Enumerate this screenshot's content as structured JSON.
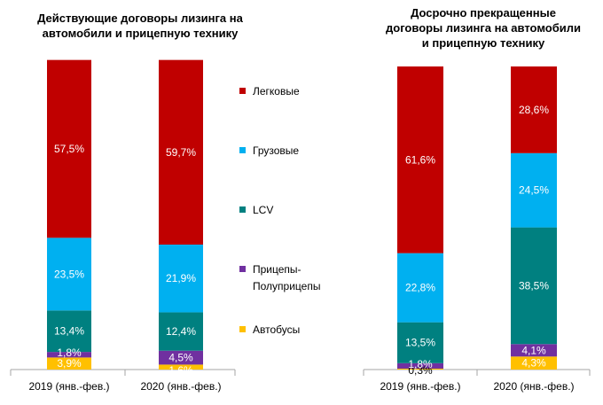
{
  "chart_data": [
    {
      "type": "bar",
      "stacked": true,
      "title": "Действующие договоры лизинга на автомобили и прицепную технику",
      "categories": [
        "2019 (янв.-фев.)",
        "2020 (янв.-фев.)"
      ],
      "series": [
        {
          "name": "Автобусы",
          "values": [
            3.9,
            1.6
          ],
          "labels": [
            "3,9%",
            "1,6%"
          ]
        },
        {
          "name": "Прицепы-Полуприцепы",
          "values": [
            1.8,
            4.5
          ],
          "labels": [
            "1,8%",
            "4,5%"
          ]
        },
        {
          "name": "LCV",
          "values": [
            13.4,
            12.4
          ],
          "labels": [
            "13,4%",
            "12,4%"
          ]
        },
        {
          "name": "Грузовые",
          "values": [
            23.5,
            21.9
          ],
          "labels": [
            "23,5%",
            "21,9%"
          ]
        },
        {
          "name": "Легковые",
          "values": [
            57.5,
            59.7
          ],
          "labels": [
            "57,5%",
            "59,7%"
          ]
        }
      ],
      "ylim": [
        0,
        100
      ]
    },
    {
      "type": "bar",
      "stacked": true,
      "title": "Досрочно прекращенные договоры лизинга на автомобили и прицепную технику",
      "categories": [
        "2019 (янв.-фев.)",
        "2020 (янв.-фев.)"
      ],
      "series": [
        {
          "name": "Автобусы",
          "values": [
            0.3,
            4.3
          ],
          "labels": [
            "0,3%",
            "4,3%"
          ]
        },
        {
          "name": "Прицепы-Полуприцепы",
          "values": [
            1.8,
            4.1
          ],
          "labels": [
            "1,8%",
            "4,1%"
          ]
        },
        {
          "name": "LCV",
          "values": [
            13.5,
            38.5
          ],
          "labels": [
            "13,5%",
            "38,5%"
          ]
        },
        {
          "name": "Грузовые",
          "values": [
            22.8,
            24.5
          ],
          "labels": [
            "22,8%",
            "24,5%"
          ]
        },
        {
          "name": "Легковые",
          "values": [
            61.6,
            28.6
          ],
          "labels": [
            "61,6%",
            "28,6%"
          ]
        }
      ],
      "ylim": [
        0,
        100
      ]
    }
  ],
  "legend": {
    "placement": "center",
    "items": [
      {
        "label": "Легковые",
        "color": "#C00000"
      },
      {
        "label": "Грузовые",
        "color": "#00B0F0"
      },
      {
        "label": "LCV",
        "color": "#008080"
      },
      {
        "label": "Прицепы-",
        "label2": "Полуприцепы",
        "color": "#7030A0"
      },
      {
        "label": "Автобусы",
        "color": "#FFC000"
      }
    ]
  },
  "colors": {
    "Легковые": "#C00000",
    "Грузовые": "#00B0F0",
    "LCV": "#008080",
    "Прицепы-Полуприцепы": "#7030A0",
    "Автобусы": "#FFC000"
  }
}
